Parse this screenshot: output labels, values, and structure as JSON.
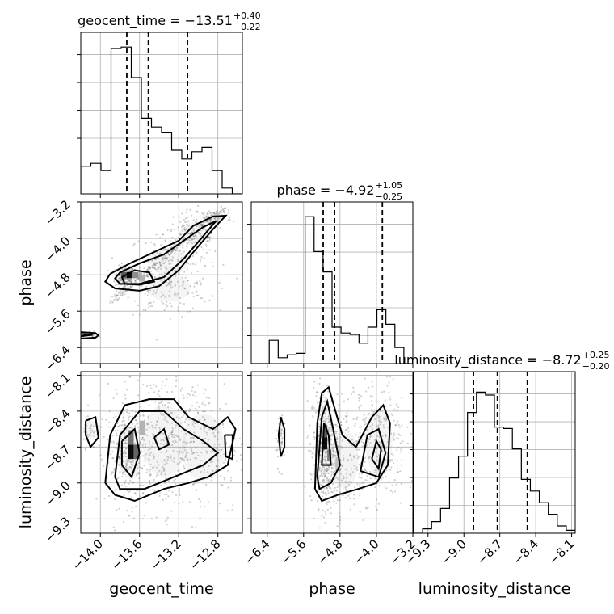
{
  "chart_data": {
    "type": "corner",
    "parameters": [
      {
        "name": "geocent_time",
        "axis_label": "geocent_time",
        "title": "geocent_time = −13.51",
        "sup": "+0.40",
        "sub": "−0.22",
        "range": [
          -14.2,
          -12.55
        ],
        "ticks": [
          -14.0,
          -13.6,
          -13.2,
          -12.8
        ],
        "tick_labels": [
          "−14.0",
          "−13.6",
          "−13.2",
          "−12.8"
        ],
        "quantiles": [
          -13.73,
          -13.51,
          -13.11
        ],
        "hist": [
          0.19,
          0.21,
          0.16,
          1.0,
          1.01,
          0.8,
          0.52,
          0.46,
          0.42,
          0.3,
          0.24,
          0.29,
          0.32,
          0.16,
          0.04,
          0.0
        ]
      },
      {
        "name": "phase",
        "axis_label": "phase",
        "title": "phase = −4.92",
        "sup": "+1.05",
        "sub": "−0.25",
        "range": [
          -6.75,
          -3.2
        ],
        "ticks": [
          -6.4,
          -5.6,
          -4.8,
          -4.0,
          -3.2
        ],
        "tick_labels": [
          "−6.4",
          "−5.6",
          "−4.8",
          "−4.0",
          "−3.2"
        ],
        "quantiles": [
          -5.17,
          -4.92,
          -3.87
        ],
        "hist": [
          0.0,
          0.0,
          0.16,
          0.04,
          0.06,
          0.07,
          1.01,
          0.77,
          0.63,
          0.25,
          0.21,
          0.2,
          0.14,
          0.25,
          0.37,
          0.27,
          0.11,
          0.0
        ]
      },
      {
        "name": "luminosity_distance",
        "axis_label": "luminosity_distance",
        "title": "luminosity_distance = −8.72",
        "sup": "+0.25",
        "sub": "−0.20",
        "range": [
          -9.42,
          -8.07
        ],
        "ticks": [
          -9.3,
          -9.0,
          -8.7,
          -8.4,
          -8.1
        ],
        "tick_labels": [
          "−9.3",
          "−9.0",
          "−8.7",
          "−8.4",
          "−8.1"
        ],
        "quantiles": [
          -8.92,
          -8.72,
          -8.47
        ],
        "hist": [
          0.0,
          0.03,
          0.08,
          0.17,
          0.38,
          0.53,
          0.83,
          0.97,
          0.95,
          0.73,
          0.72,
          0.58,
          0.37,
          0.29,
          0.21,
          0.13,
          0.05,
          0.02
        ]
      }
    ],
    "pairs": [
      {
        "x": 0,
        "y": 1,
        "clusters": [
          {
            "cx": -13.75,
            "cy": -4.85,
            "sx": 0.05,
            "sy": 0.12,
            "n": 180
          },
          {
            "cx": -13.3,
            "cy": -4.5,
            "sx": 0.2,
            "sy": 0.3,
            "n": 140
          },
          {
            "cx": -13.05,
            "cy": -3.9,
            "sx": 0.15,
            "sy": 0.25,
            "n": 130
          },
          {
            "cx": -13.3,
            "cy": -5.1,
            "sx": 0.22,
            "sy": 0.28,
            "n": 150
          },
          {
            "cx": -12.85,
            "cy": -3.55,
            "sx": 0.1,
            "sy": 0.12,
            "n": 60
          },
          {
            "cx": -14.1,
            "cy": -6.12,
            "sx": 0.06,
            "sy": 0.04,
            "n": 30
          }
        ],
        "diagonal_band": {
          "x0": -13.9,
          "y0": -5.4,
          "x1": -12.72,
          "y1": -3.32,
          "n": 260,
          "spread": 0.05
        },
        "hot_cells": [
          {
            "x": -13.73,
            "y": -4.87,
            "w": 0.06,
            "h": 0.13,
            "shade": 0.05
          },
          {
            "x": -13.79,
            "y": -4.87,
            "w": 0.06,
            "h": 0.13,
            "shade": 0.35
          },
          {
            "x": -13.67,
            "y": -4.87,
            "w": 0.06,
            "h": 0.13,
            "shade": 0.55
          },
          {
            "x": -13.6,
            "y": -4.95,
            "w": 0.06,
            "h": 0.13,
            "shade": 0.7
          }
        ],
        "contours": [
          [
            [
              -13.9,
              -4.78
            ],
            [
              -13.7,
              -4.55
            ],
            [
              -13.45,
              -4.3
            ],
            [
              -13.2,
              -4.05
            ],
            [
              -13.05,
              -3.72
            ],
            [
              -12.85,
              -3.52
            ],
            [
              -12.72,
              -3.5
            ],
            [
              -12.85,
              -3.8
            ],
            [
              -13.05,
              -4.3
            ],
            [
              -13.2,
              -4.7
            ],
            [
              -13.4,
              -5.05
            ],
            [
              -13.6,
              -5.15
            ],
            [
              -13.85,
              -5.1
            ],
            [
              -13.95,
              -4.95
            ],
            [
              -13.9,
              -4.78
            ]
          ],
          [
            [
              -13.8,
              -4.75
            ],
            [
              -13.6,
              -4.55
            ],
            [
              -13.35,
              -4.35
            ],
            [
              -13.15,
              -4.05
            ],
            [
              -12.95,
              -3.75
            ],
            [
              -12.82,
              -3.62
            ],
            [
              -12.95,
              -3.95
            ],
            [
              -13.15,
              -4.45
            ],
            [
              -13.35,
              -4.85
            ],
            [
              -13.6,
              -5.0
            ],
            [
              -13.8,
              -5.0
            ],
            [
              -13.85,
              -4.88
            ],
            [
              -13.8,
              -4.75
            ]
          ],
          [
            [
              -13.78,
              -4.85
            ],
            [
              -13.65,
              -4.7
            ],
            [
              -13.5,
              -4.75
            ],
            [
              -13.45,
              -4.95
            ],
            [
              -13.6,
              -5.02
            ],
            [
              -13.75,
              -5.0
            ],
            [
              -13.78,
              -4.85
            ]
          ],
          [
            [
              -14.2,
              -6.06
            ],
            [
              -14.05,
              -6.08
            ],
            [
              -14.02,
              -6.13
            ],
            [
              -14.05,
              -6.18
            ],
            [
              -14.2,
              -6.2
            ]
          ],
          [
            [
              -14.2,
              -6.1
            ],
            [
              -14.08,
              -6.12
            ],
            [
              -14.2,
              -6.15
            ]
          ]
        ]
      },
      {
        "x": 0,
        "y": 2,
        "clusters": [
          {
            "cx": -13.7,
            "cy": -8.75,
            "sx": 0.12,
            "sy": 0.22,
            "n": 300
          },
          {
            "cx": -13.35,
            "cy": -8.65,
            "sx": 0.22,
            "sy": 0.3,
            "n": 300
          },
          {
            "cx": -12.95,
            "cy": -8.7,
            "sx": 0.22,
            "sy": 0.28,
            "n": 220
          },
          {
            "cx": -14.1,
            "cy": -8.55,
            "sx": 0.05,
            "sy": 0.08,
            "n": 40
          }
        ],
        "hot_cells": [
          {
            "x": -13.72,
            "y": -8.8,
            "w": 0.06,
            "h": 0.12,
            "shade": 0.05
          },
          {
            "x": -13.72,
            "y": -8.68,
            "w": 0.06,
            "h": 0.12,
            "shade": 0.45
          },
          {
            "x": -13.66,
            "y": -8.8,
            "w": 0.06,
            "h": 0.12,
            "shade": 0.4
          },
          {
            "x": -13.6,
            "y": -8.6,
            "w": 0.06,
            "h": 0.12,
            "shade": 0.7
          }
        ],
        "contours": [
          [
            [
              -13.95,
              -9.0
            ],
            [
              -13.9,
              -8.6
            ],
            [
              -13.75,
              -8.35
            ],
            [
              -13.5,
              -8.3
            ],
            [
              -13.25,
              -8.3
            ],
            [
              -13.1,
              -8.45
            ],
            [
              -12.85,
              -8.55
            ],
            [
              -12.7,
              -8.45
            ],
            [
              -12.62,
              -8.55
            ],
            [
              -12.7,
              -8.85
            ],
            [
              -12.9,
              -8.95
            ],
            [
              -13.1,
              -9.0
            ],
            [
              -13.35,
              -9.05
            ],
            [
              -13.65,
              -9.15
            ],
            [
              -13.85,
              -9.1
            ],
            [
              -13.95,
              -9.0
            ]
          ],
          [
            [
              -13.85,
              -8.95
            ],
            [
              -13.8,
              -8.6
            ],
            [
              -13.6,
              -8.4
            ],
            [
              -13.35,
              -8.4
            ],
            [
              -13.15,
              -8.55
            ],
            [
              -12.95,
              -8.65
            ],
            [
              -12.8,
              -8.75
            ],
            [
              -12.95,
              -8.85
            ],
            [
              -13.25,
              -8.95
            ],
            [
              -13.55,
              -9.05
            ],
            [
              -13.8,
              -9.05
            ],
            [
              -13.85,
              -8.95
            ]
          ],
          [
            [
              -13.78,
              -8.65
            ],
            [
              -13.65,
              -8.55
            ],
            [
              -13.6,
              -8.75
            ],
            [
              -13.68,
              -8.95
            ],
            [
              -13.78,
              -8.85
            ],
            [
              -13.78,
              -8.65
            ]
          ],
          [
            [
              -13.45,
              -8.62
            ],
            [
              -13.35,
              -8.55
            ],
            [
              -13.3,
              -8.68
            ],
            [
              -13.4,
              -8.72
            ],
            [
              -13.45,
              -8.62
            ]
          ],
          [
            [
              -14.15,
              -8.48
            ],
            [
              -14.05,
              -8.45
            ],
            [
              -14.02,
              -8.62
            ],
            [
              -14.1,
              -8.7
            ],
            [
              -14.15,
              -8.6
            ],
            [
              -14.15,
              -8.48
            ]
          ],
          [
            [
              -12.73,
              -8.6
            ],
            [
              -12.65,
              -8.6
            ],
            [
              -12.65,
              -8.8
            ],
            [
              -12.72,
              -8.78
            ],
            [
              -12.73,
              -8.6
            ]
          ]
        ]
      },
      {
        "x": 1,
        "y": 2,
        "clusters": [
          {
            "cx": -5.15,
            "cy": -8.7,
            "sx": 0.15,
            "sy": 0.25,
            "n": 420
          },
          {
            "cx": -4.7,
            "cy": -8.8,
            "sx": 0.3,
            "sy": 0.25,
            "n": 200
          },
          {
            "cx": -3.95,
            "cy": -8.65,
            "sx": 0.3,
            "sy": 0.28,
            "n": 260
          },
          {
            "cx": -6.1,
            "cy": -8.6,
            "sx": 0.05,
            "sy": 0.12,
            "n": 40
          }
        ],
        "hot_cells": [
          {
            "x": -5.17,
            "y": -8.72,
            "w": 0.09,
            "h": 0.1,
            "shade": 0.05
          },
          {
            "x": -5.17,
            "y": -8.62,
            "w": 0.09,
            "h": 0.1,
            "shade": 0.35
          },
          {
            "x": -5.08,
            "y": -8.82,
            "w": 0.09,
            "h": 0.1,
            "shade": 0.5
          },
          {
            "x": -4.9,
            "y": -8.9,
            "w": 0.09,
            "h": 0.1,
            "shade": 0.75
          }
        ],
        "contours": [
          [
            [
              -5.35,
              -9.05
            ],
            [
              -5.3,
              -8.5
            ],
            [
              -5.2,
              -8.25
            ],
            [
              -5.05,
              -8.2
            ],
            [
              -4.9,
              -8.4
            ],
            [
              -4.75,
              -8.6
            ],
            [
              -4.45,
              -8.7
            ],
            [
              -4.1,
              -8.45
            ],
            [
              -3.85,
              -8.35
            ],
            [
              -3.7,
              -8.5
            ],
            [
              -3.75,
              -8.85
            ],
            [
              -4.0,
              -9.0
            ],
            [
              -4.4,
              -9.05
            ],
            [
              -4.85,
              -9.1
            ],
            [
              -5.2,
              -9.15
            ],
            [
              -5.35,
              -9.05
            ]
          ],
          [
            [
              -5.3,
              -8.95
            ],
            [
              -5.2,
              -8.45
            ],
            [
              -5.08,
              -8.32
            ],
            [
              -4.95,
              -8.55
            ],
            [
              -4.8,
              -8.85
            ],
            [
              -5.0,
              -9.0
            ],
            [
              -5.25,
              -9.05
            ],
            [
              -5.3,
              -8.95
            ]
          ],
          [
            [
              -5.2,
              -8.85
            ],
            [
              -5.15,
              -8.5
            ],
            [
              -5.05,
              -8.6
            ],
            [
              -5.0,
              -8.85
            ],
            [
              -5.2,
              -8.85
            ]
          ],
          [
            [
              -4.1,
              -8.8
            ],
            [
              -4.0,
              -8.65
            ],
            [
              -3.9,
              -8.72
            ],
            [
              -3.95,
              -8.88
            ],
            [
              -4.1,
              -8.8
            ]
          ],
          [
            [
              -4.35,
              -8.9
            ],
            [
              -4.2,
              -8.6
            ],
            [
              -3.95,
              -8.55
            ],
            [
              -3.8,
              -8.75
            ],
            [
              -3.95,
              -8.95
            ],
            [
              -4.35,
              -8.9
            ]
          ],
          [
            [
              -6.1,
              -8.45
            ],
            [
              -6.02,
              -8.55
            ],
            [
              -6.02,
              -8.7
            ],
            [
              -6.1,
              -8.78
            ],
            [
              -6.15,
              -8.6
            ],
            [
              -6.1,
              -8.45
            ]
          ]
        ]
      }
    ]
  }
}
